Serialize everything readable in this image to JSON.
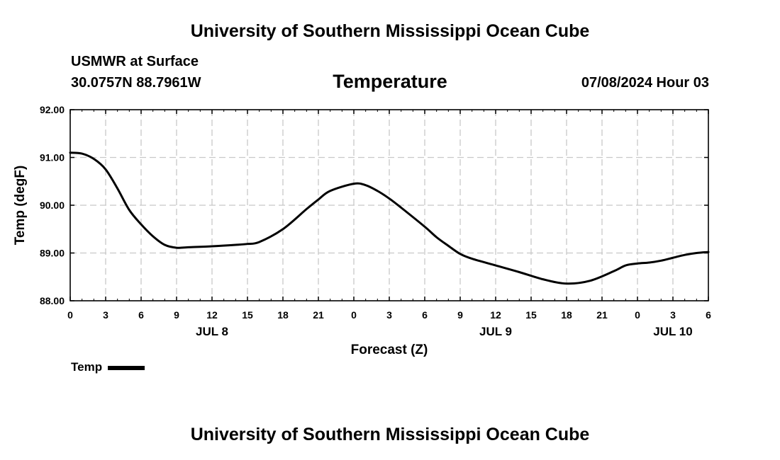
{
  "header": {
    "title": "University of Southern Mississippi Ocean Cube",
    "station_name": "USMWR at Surface",
    "station_coords": "30.0757N  88.7961W",
    "chart_title": "Temperature",
    "date": "07/08/2024 Hour 03"
  },
  "footer": {
    "title": "University of Southern Mississippi Ocean Cube"
  },
  "legend": {
    "label": "Temp"
  },
  "colors": {
    "line": "#000000",
    "grid": "#c8c8c8",
    "frame": "#000000"
  },
  "chart_data": {
    "type": "line",
    "title": "Temperature",
    "xlabel": "Forecast (Z)",
    "ylabel": "Temp (degF)",
    "x_unit": "hours since 00Z JUL 8",
    "xlim": [
      0,
      54
    ],
    "ylim": [
      88.0,
      92.0
    ],
    "y_ticks": [
      "88.00",
      "89.00",
      "90.00",
      "91.00",
      "92.00"
    ],
    "x_ticks": [
      "0",
      "3",
      "6",
      "9",
      "12",
      "15",
      "18",
      "21",
      "0",
      "3",
      "6",
      "9",
      "12",
      "15",
      "18",
      "21",
      "0",
      "3",
      "6"
    ],
    "day_labels": [
      {
        "label": "JUL 8",
        "hour": 12
      },
      {
        "label": "JUL 9",
        "hour": 36
      },
      {
        "label": "JUL 10",
        "hour": 51
      }
    ],
    "grid": true,
    "legend_position": "bottom-left",
    "series": [
      {
        "name": "Temp",
        "x": [
          0,
          1,
          2,
          3,
          4,
          5,
          6,
          7,
          8,
          9,
          10,
          12,
          14,
          15,
          16,
          18,
          20,
          21,
          22,
          24,
          25,
          26,
          27,
          28,
          30,
          31,
          32,
          33,
          34,
          36,
          38,
          40,
          42,
          44,
          46,
          47,
          48,
          49,
          50,
          51,
          52,
          53,
          54
        ],
        "values": [
          91.1,
          91.08,
          90.97,
          90.75,
          90.35,
          89.9,
          89.6,
          89.35,
          89.17,
          89.11,
          89.12,
          89.14,
          89.17,
          89.19,
          89.23,
          89.5,
          89.92,
          90.12,
          90.3,
          90.45,
          90.42,
          90.3,
          90.14,
          89.95,
          89.55,
          89.33,
          89.15,
          88.98,
          88.88,
          88.74,
          88.6,
          88.45,
          88.36,
          88.42,
          88.62,
          88.74,
          88.78,
          88.8,
          88.84,
          88.9,
          88.96,
          89.0,
          89.02
        ]
      }
    ]
  }
}
